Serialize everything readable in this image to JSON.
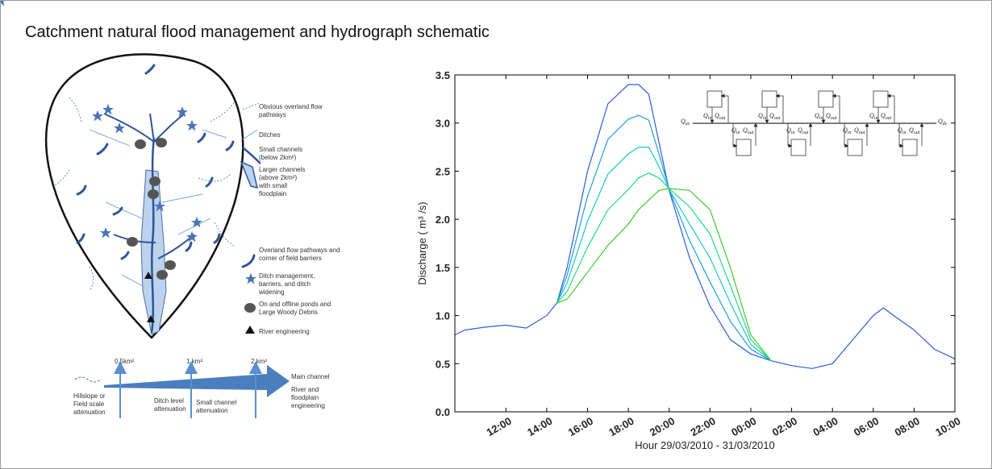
{
  "title": "Catchment natural flood management and hydrograph schematic",
  "diagram": {
    "legend": [
      "Obvious overland flow pathways",
      "Ditches",
      "Small channels (below 2km²)",
      "Larger channels (above 2km²) with small floodplain",
      "Overland flow pathways and corner of field barriers",
      "Ditch management, barriers, and ditch widening",
      "On and offline ponds and Large Woody Debris",
      "River engineering"
    ],
    "areas": [
      "0.5km²",
      "1 km²",
      "2 km²"
    ],
    "stages": [
      "Hillslope or Field scale attenuation",
      "Ditch level attenuation",
      "Small channel attenuation",
      "Main channel",
      "River and floodplain engineering"
    ]
  },
  "chart_data": {
    "type": "line",
    "xlabel": "Hour 29/03/2010 - 31/03/2010",
    "ylabel": "Discharge ( m³ /s)",
    "x": [
      9.5,
      10,
      11,
      12,
      13,
      14,
      14.5,
      15,
      16,
      17,
      18,
      18.5,
      19,
      19.5,
      20,
      21,
      22,
      23,
      24,
      25,
      26,
      27,
      28,
      29,
      30,
      30.5,
      31,
      32,
      33,
      34
    ],
    "series": [
      {
        "color": "#2a5fd8",
        "values": [
          0.8,
          0.85,
          0.88,
          0.9,
          0.87,
          1.0,
          1.13,
          1.5,
          2.5,
          3.2,
          3.4,
          3.4,
          3.3,
          2.8,
          2.3,
          1.6,
          1.1,
          0.75,
          0.6,
          0.53,
          0.48,
          0.45,
          0.5,
          0.75,
          1.0,
          1.08,
          1.0,
          0.85,
          0.65,
          0.55
        ]
      },
      {
        "color": "#1f9fe0",
        "values": [
          null,
          null,
          null,
          null,
          null,
          null,
          1.13,
          1.42,
          2.24,
          2.83,
          3.04,
          3.08,
          3.03,
          2.68,
          2.31,
          1.78,
          1.35,
          0.94,
          0.65,
          0.53,
          null,
          null,
          null,
          null,
          null,
          null,
          null,
          null,
          null,
          null
        ]
      },
      {
        "color": "#1cc6c8",
        "values": [
          null,
          null,
          null,
          null,
          null,
          null,
          1.13,
          1.34,
          1.98,
          2.47,
          2.68,
          2.75,
          2.75,
          2.55,
          2.31,
          1.95,
          1.6,
          1.13,
          0.7,
          0.53,
          null,
          null,
          null,
          null,
          null,
          null,
          null,
          null,
          null,
          null
        ]
      },
      {
        "color": "#22d98c",
        "values": [
          null,
          null,
          null,
          null,
          null,
          null,
          1.13,
          1.25,
          1.71,
          2.1,
          2.31,
          2.43,
          2.48,
          2.43,
          2.32,
          2.13,
          1.85,
          1.31,
          0.75,
          0.53,
          null,
          null,
          null,
          null,
          null,
          null,
          null,
          null,
          null,
          null
        ]
      },
      {
        "color": "#3ccc2c",
        "values": [
          null,
          null,
          null,
          null,
          null,
          null,
          1.13,
          1.17,
          1.45,
          1.73,
          1.95,
          2.1,
          2.2,
          2.3,
          2.32,
          2.3,
          2.1,
          1.5,
          0.8,
          0.53,
          null,
          null,
          null,
          null,
          null,
          null,
          null,
          null,
          null,
          null
        ]
      }
    ],
    "xlim": [
      9.5,
      34
    ],
    "ylim": [
      0,
      3.5
    ],
    "xticks": [
      {
        "value": 12,
        "label": "12:00"
      },
      {
        "value": 14,
        "label": "14:00"
      },
      {
        "value": 16,
        "label": "16:00"
      },
      {
        "value": 18,
        "label": "18:00"
      },
      {
        "value": 20,
        "label": "20:00"
      },
      {
        "value": 22,
        "label": "22:00"
      },
      {
        "value": 24,
        "label": "00:00"
      },
      {
        "value": 26,
        "label": "02:00"
      },
      {
        "value": 28,
        "label": "04:00"
      },
      {
        "value": 30,
        "label": "06:00"
      },
      {
        "value": 32,
        "label": "08:00"
      },
      {
        "value": 34,
        "label": "10:00"
      }
    ],
    "yticks": [
      {
        "value": 0,
        "label": "0.0"
      },
      0.5,
      {
        "value": 1,
        "label": "1.0"
      },
      1.5,
      {
        "value": 2,
        "label": "2.0"
      },
      2.5,
      {
        "value": 3,
        "label": "3.0"
      },
      3.5
    ],
    "inset": {
      "symbol": "Q",
      "upstream": "us",
      "downstream": "ds",
      "inflow": "in",
      "outflow": "out"
    }
  }
}
